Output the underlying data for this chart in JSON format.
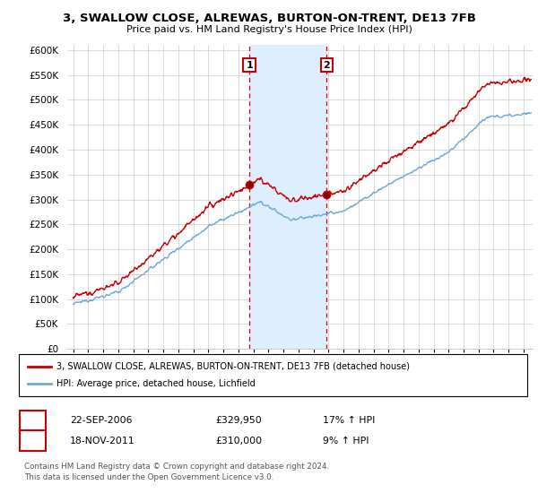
{
  "title": "3, SWALLOW CLOSE, ALREWAS, BURTON-ON-TRENT, DE13 7FB",
  "subtitle": "Price paid vs. HM Land Registry's House Price Index (HPI)",
  "ylabel_ticks": [
    "£0",
    "£50K",
    "£100K",
    "£150K",
    "£200K",
    "£250K",
    "£300K",
    "£350K",
    "£400K",
    "£450K",
    "£500K",
    "£550K",
    "£600K"
  ],
  "ytick_vals": [
    0,
    50000,
    100000,
    150000,
    200000,
    250000,
    300000,
    350000,
    400000,
    450000,
    500000,
    550000,
    600000
  ],
  "ylim": [
    0,
    610000
  ],
  "xlim_start": 1994.6,
  "xlim_end": 2025.6,
  "sale1_date": 2006.73,
  "sale1_price": 329950,
  "sale2_date": 2011.88,
  "sale2_price": 310000,
  "legend_line1": "3, SWALLOW CLOSE, ALREWAS, BURTON-ON-TRENT, DE13 7FB (detached house)",
  "legend_line2": "HPI: Average price, detached house, Lichfield",
  "footnote1": "Contains HM Land Registry data © Crown copyright and database right 2024.",
  "footnote2": "This data is licensed under the Open Government Licence v3.0.",
  "hpi_color": "#6fa8dc",
  "sale_color": "#cc0000",
  "shade_color": "#ddeeff",
  "vline_color": "#cc0000",
  "grid_color": "#cccccc",
  "bg_color": "#ffffff"
}
